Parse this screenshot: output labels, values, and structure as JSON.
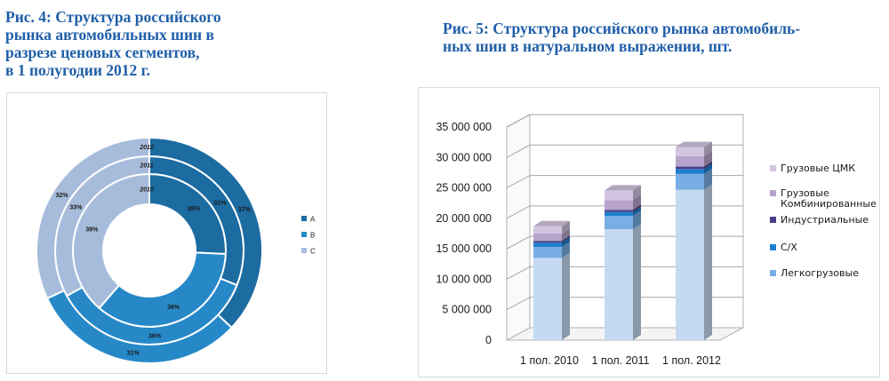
{
  "captions": {
    "left": [
      "Рис. 4: Структура российского",
      "рынка автомобильных шин в",
      "разрезе ценовых сегментов,",
      "в 1 полугодии 2012 г."
    ],
    "right": [
      "Рис. 5: Структура российского рынка автомобиль-",
      "ных шин в натуральном выражении, шт."
    ]
  },
  "chart_data": [
    {
      "type": "donut",
      "title": "",
      "legend_position": "right",
      "rings": [
        "2010",
        "2011",
        "2012"
      ],
      "categories": [
        "A",
        "B",
        "C"
      ],
      "colors": [
        "#1c6ba1",
        "#2788c8",
        "#a7bcdb"
      ],
      "series": [
        {
          "name": "2010",
          "values": [
            26,
            36,
            39
          ],
          "labels": [
            "26%",
            "36%",
            "39%"
          ]
        },
        {
          "name": "2011",
          "values": [
            31,
            36,
            33
          ],
          "labels": [
            "31%",
            "36%",
            "33%"
          ]
        },
        {
          "name": "2012",
          "values": [
            37,
            31,
            32
          ],
          "labels": [
            "37%",
            "31%",
            "32%"
          ]
        }
      ]
    },
    {
      "type": "bar",
      "stacked": true,
      "style": "3d-column",
      "title": "",
      "categories": [
        "1 пол. 2010",
        "1 пол. 2011",
        "1 пол. 2012"
      ],
      "ylim": [
        0,
        35000000
      ],
      "yticks": [
        "0",
        "5 000 000",
        "10 000 000",
        "15 000 000",
        "20 000 000",
        "25 000 000",
        "30 000 000",
        "35 000 000"
      ],
      "grid": true,
      "legend_position": "right",
      "series": [
        {
          "name": "",
          "color": "#c5daf2",
          "values": [
            13500000,
            18200000,
            24700000
          ]
        },
        {
          "name": "Легкогрузовые",
          "color": "#78aee3",
          "values": [
            1800000,
            2200000,
            2600000
          ]
        },
        {
          "name": "C/X",
          "color": "#1f7fd1",
          "values": [
            700000,
            650000,
            800000
          ]
        },
        {
          "name": "Индустриальные",
          "color": "#4a3f86",
          "values": [
            300000,
            350000,
            400000
          ]
        },
        {
          "name": "Грузовые Комбинированные",
          "color": "#b7a3cc",
          "values": [
            1200000,
            1600000,
            1700000
          ]
        },
        {
          "name": "Грузовые ЦМК",
          "color": "#d2c5e1",
          "values": [
            1200000,
            1600000,
            1500000
          ]
        }
      ]
    }
  ]
}
